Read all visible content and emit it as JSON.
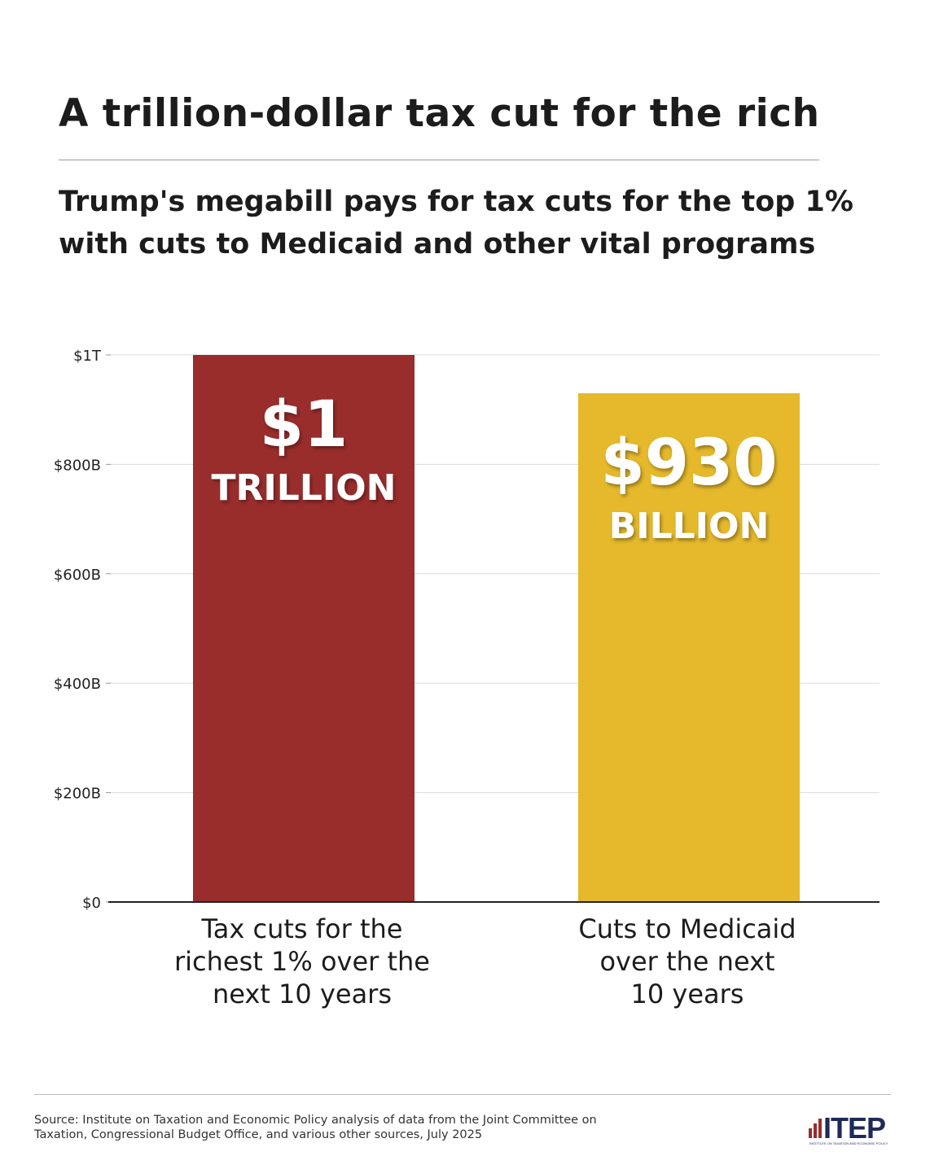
{
  "header": {
    "title": "A trillion-dollar tax cut for the rich",
    "subtitle_line1": "Trump's megabill pays for tax cuts for the top 1%",
    "subtitle_line2": "with cuts to Medicaid and other vital programs"
  },
  "chart_data": {
    "type": "bar",
    "title": "A trillion-dollar tax cut for the rich",
    "categories": [
      [
        "Tax cuts for the",
        "richest 1% over the",
        "next 10 years"
      ],
      [
        "Cuts to Medicaid",
        "over the next",
        "10 years"
      ]
    ],
    "values": [
      1000,
      930
    ],
    "value_unit": "billion USD",
    "bar_labels": [
      [
        "$1",
        "TRILLION"
      ],
      [
        "$930",
        "BILLION"
      ]
    ],
    "bar_colors": [
      "#992d2c",
      "#e5b92b"
    ],
    "ylim": [
      0,
      1000
    ],
    "yticks": [
      0,
      200,
      400,
      600,
      800,
      1000
    ],
    "ytick_labels": [
      "$0",
      "$200B",
      "$400B",
      "$600B",
      "$800B",
      "$1T"
    ],
    "grid": true,
    "xlabel": "",
    "ylabel": ""
  },
  "footer": {
    "source_line1": "Source: Institute on Taxation and Economic Policy analysis of data from the Joint Committee on",
    "source_line2": "Taxation, Congressional Budget Office, and various other sources, July 2025",
    "logo_text": "ITEP",
    "logo_subtext": "INSTITUTE ON TAXATION AND ECONOMIC POLICY",
    "logo_color": "#1f2a5a",
    "logo_accent": "#992d2c"
  }
}
